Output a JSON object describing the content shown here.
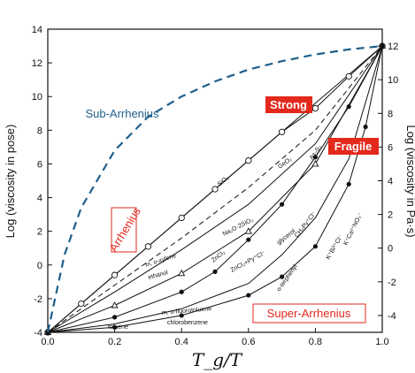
{
  "colors": {
    "sub_arrhenius": "#1f5f8b",
    "red": "#e3281c",
    "black": "#111111"
  },
  "chart_data": {
    "type": "line",
    "xlabel": "T_g/T",
    "ylabel_left": "Log (viscosity in pose)",
    "ylabel_right": "Log (viscosity in Pa·s)",
    "xlim": [
      0.0,
      1.0
    ],
    "ylim_left": [
      -4,
      14
    ],
    "ylim_right": [
      -5,
      13
    ],
    "x_ticks": [
      "0.0",
      "0.2",
      "0.4",
      "0.6",
      "0.8",
      "1.0"
    ],
    "y_ticks_left": [
      "-4",
      "-2",
      "0",
      "2",
      "4",
      "6",
      "8",
      "10",
      "12",
      "14"
    ],
    "y_ticks_right": [
      "-4",
      "-2",
      "0",
      "2",
      "4",
      "6",
      "8",
      "10",
      "12"
    ],
    "labels": {
      "sub_arrhenius": "Sub-Arrhenius",
      "arrhenius": "Arrhenius",
      "strong": "Strong",
      "fragile": "Fragile",
      "super_arrhenius": "Super-Arrhenius"
    },
    "material_labels": [
      "SiO₂",
      "GeO₂",
      "As₂S₃",
      "Na₂O·2SiO₂",
      "ZnCl₂",
      "ZnCl₂+Py⁺Cl⁻",
      "glycerol",
      "CH₃Py⁺Cl⁻",
      "K⁺Bi³⁺Cl⁻",
      "K⁺Ca²⁺NO₃⁻",
      "o-terphenyl",
      "m, o-xylene",
      "ethanol",
      "toluene",
      "m, o-fluorotoluene",
      "chlorobenzene"
    ],
    "series": [
      {
        "x": [
          0.0,
          0.2,
          0.4,
          0.6,
          0.8,
          1.0
        ],
        "y": [
          -4,
          -0.6,
          2.8,
          6.2,
          9.6,
          13
        ],
        "marker": "none"
      },
      {
        "x": [
          0.0,
          0.1,
          0.2,
          0.3,
          0.4,
          0.5,
          0.6,
          0.7,
          0.8,
          0.9,
          1.0
        ],
        "y": [
          -4,
          -2.3,
          -0.6,
          1.1,
          2.8,
          4.5,
          6.2,
          7.9,
          9.3,
          11.2,
          13
        ],
        "marker": "circle"
      },
      {
        "x": [
          0.0,
          0.2,
          0.4,
          0.6,
          0.8,
          1.0
        ],
        "y": [
          -4,
          -1.2,
          1.6,
          4.6,
          8.0,
          13
        ],
        "marker": "none",
        "dash": true
      },
      {
        "x": [
          0.0,
          0.2,
          0.4,
          0.6,
          0.8,
          1.0
        ],
        "y": [
          -4,
          -1.6,
          0.9,
          3.6,
          7.2,
          13
        ],
        "marker": "none"
      },
      {
        "x": [
          0.0,
          0.2,
          0.4,
          0.6,
          0.8,
          1.0
        ],
        "y": [
          -4,
          -2.4,
          -0.5,
          2.0,
          6.0,
          13
        ],
        "marker": "triangle"
      },
      {
        "x": [
          0.0,
          0.2,
          0.4,
          0.5,
          0.6,
          0.7,
          0.8,
          0.9,
          1.0
        ],
        "y": [
          -4,
          -3.1,
          -1.6,
          -0.4,
          1.5,
          3.6,
          6.4,
          9.4,
          13
        ],
        "marker": "dot"
      },
      {
        "x": [
          0.0,
          0.2,
          0.4,
          0.6,
          0.7,
          0.8,
          0.9,
          1.0
        ],
        "y": [
          -4,
          -3.5,
          -2.6,
          -1.1,
          0.6,
          2.8,
          6.3,
          13
        ],
        "marker": "none"
      },
      {
        "x": [
          0.0,
          0.2,
          0.4,
          0.6,
          0.7,
          0.8,
          0.9,
          0.95,
          1.0
        ],
        "y": [
          -4,
          -3.7,
          -3.0,
          -1.8,
          -0.7,
          1.1,
          4.8,
          8.2,
          13
        ],
        "marker": "dot"
      }
    ],
    "sub_arrhenius_curve": {
      "x": [
        0.0,
        0.05,
        0.1,
        0.2,
        0.3,
        0.4,
        0.5,
        0.6,
        0.7,
        0.8,
        0.9,
        1.0
      ],
      "y": [
        -4,
        0.6,
        3.4,
        6.8,
        8.8,
        10.0,
        10.9,
        11.6,
        12.1,
        12.5,
        12.8,
        13
      ],
      "dash": true
    }
  }
}
